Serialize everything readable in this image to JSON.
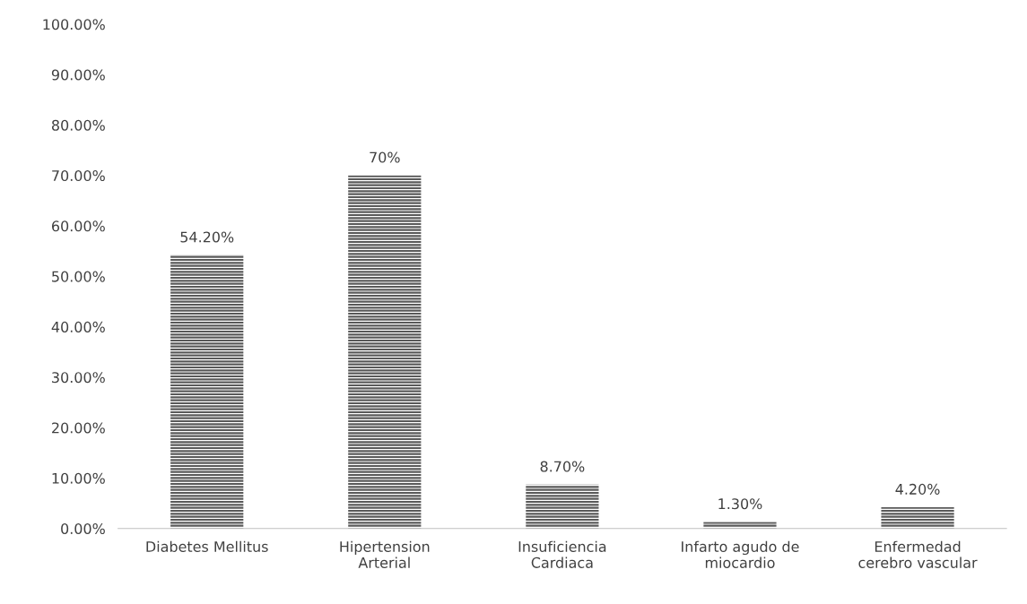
{
  "chart_data": {
    "type": "bar",
    "categories": [
      "Diabetes Mellitus",
      "Hipertension\nArterial",
      "Insuficiencia\nCardiaca",
      "Infarto agudo de\nmiocardio",
      "Enfermedad\ncerebro vascular"
    ],
    "values": [
      54.2,
      70,
      8.7,
      1.3,
      4.2
    ],
    "value_labels": [
      "54.20%",
      "70%",
      "8.70%",
      "1.30%",
      "4.20%"
    ],
    "color": "#595959",
    "ylim": [
      0,
      100
    ],
    "yticks": [
      {
        "value": 0,
        "label": "0.00%"
      },
      {
        "value": 10,
        "label": "10.00%"
      },
      {
        "value": 20,
        "label": "20.00%"
      },
      {
        "value": 30,
        "label": "30.00%"
      },
      {
        "value": 40,
        "label": "40.00%"
      },
      {
        "value": 50,
        "label": "50.00%"
      },
      {
        "value": 60,
        "label": "60.00%"
      },
      {
        "value": 70,
        "label": "70.00%"
      },
      {
        "value": 80,
        "label": "80.00%"
      },
      {
        "value": 90,
        "label": "90.00%"
      },
      {
        "value": 100,
        "label": "100.00%"
      }
    ],
    "grid": false,
    "legend": false
  }
}
